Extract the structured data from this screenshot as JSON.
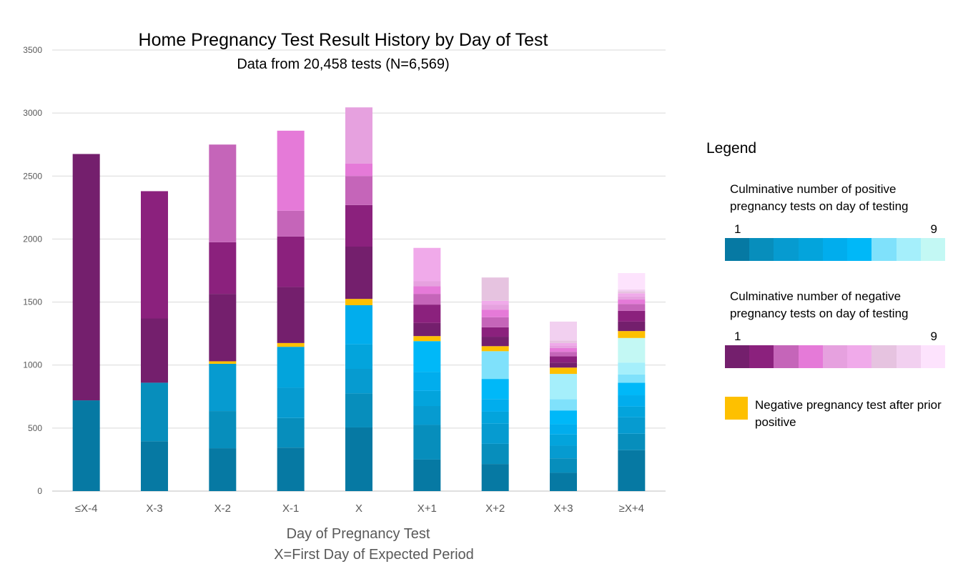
{
  "chart_data": {
    "type": "bar",
    "stacked": true,
    "title": "Home Pregnancy Test Result History by Day of Test",
    "subtitle": "Data from 20,458 tests (N=6,569)",
    "xlabel": "Day of Pregnancy Test",
    "xlabel_note": "X=First Day of Expected Period",
    "ylim": [
      0,
      3500
    ],
    "yticks": [
      0,
      500,
      1000,
      1500,
      2000,
      2500,
      3000,
      3500
    ],
    "grid": true,
    "legend_placement": "right",
    "categories": [
      "≤X-4",
      "X-3",
      "X-2",
      "X-1",
      "X",
      "X+1",
      "X+2",
      "X+3",
      "≥X+4"
    ],
    "segments": [
      [
        {
          "kind": "pos",
          "level": 1,
          "value": 720
        },
        {
          "kind": "neg",
          "level": 1,
          "value": 1955
        }
      ],
      [
        {
          "kind": "pos",
          "level": 1,
          "value": 395
        },
        {
          "kind": "pos",
          "level": 2,
          "value": 465
        },
        {
          "kind": "neg",
          "level": 1,
          "value": 510
        },
        {
          "kind": "neg",
          "level": 2,
          "value": 1010
        }
      ],
      [
        {
          "kind": "pos",
          "level": 1,
          "value": 340
        },
        {
          "kind": "pos",
          "level": 2,
          "value": 295
        },
        {
          "kind": "pos",
          "level": 3,
          "value": 375
        },
        {
          "kind": "neg_after_pos",
          "value": 20
        },
        {
          "kind": "neg",
          "level": 1,
          "value": 535
        },
        {
          "kind": "neg",
          "level": 2,
          "value": 410
        },
        {
          "kind": "neg",
          "level": 3,
          "value": 775
        }
      ],
      [
        {
          "kind": "pos",
          "level": 1,
          "value": 345
        },
        {
          "kind": "pos",
          "level": 2,
          "value": 235
        },
        {
          "kind": "pos",
          "level": 3,
          "value": 240
        },
        {
          "kind": "pos",
          "level": 4,
          "value": 325
        },
        {
          "kind": "neg_after_pos",
          "value": 30
        },
        {
          "kind": "neg",
          "level": 1,
          "value": 445
        },
        {
          "kind": "neg",
          "level": 2,
          "value": 400
        },
        {
          "kind": "neg",
          "level": 3,
          "value": 205
        },
        {
          "kind": "neg",
          "level": 4,
          "value": 635
        }
      ],
      [
        {
          "kind": "pos",
          "level": 1,
          "value": 505
        },
        {
          "kind": "pos",
          "level": 2,
          "value": 270
        },
        {
          "kind": "pos",
          "level": 3,
          "value": 195
        },
        {
          "kind": "pos",
          "level": 4,
          "value": 195
        },
        {
          "kind": "pos",
          "level": 5,
          "value": 310
        },
        {
          "kind": "neg_after_pos",
          "value": 50
        },
        {
          "kind": "neg",
          "level": 1,
          "value": 415
        },
        {
          "kind": "neg",
          "level": 2,
          "value": 330
        },
        {
          "kind": "neg",
          "level": 3,
          "value": 230
        },
        {
          "kind": "neg",
          "level": 4,
          "value": 100
        },
        {
          "kind": "neg",
          "level": 5,
          "value": 445
        }
      ],
      [
        {
          "kind": "pos",
          "level": 1,
          "value": 250
        },
        {
          "kind": "pos",
          "level": 2,
          "value": 275
        },
        {
          "kind": "pos",
          "level": 3,
          "value": 150
        },
        {
          "kind": "pos",
          "level": 4,
          "value": 120
        },
        {
          "kind": "pos",
          "level": 5,
          "value": 150
        },
        {
          "kind": "pos",
          "level": 6,
          "value": 245
        },
        {
          "kind": "neg_after_pos",
          "value": 40
        },
        {
          "kind": "neg",
          "level": 1,
          "value": 105
        },
        {
          "kind": "neg",
          "level": 2,
          "value": 145
        },
        {
          "kind": "neg",
          "level": 3,
          "value": 85
        },
        {
          "kind": "neg",
          "level": 4,
          "value": 60
        },
        {
          "kind": "neg",
          "level": 5,
          "value": 40
        },
        {
          "kind": "neg",
          "level": 6,
          "value": 265
        }
      ],
      [
        {
          "kind": "pos",
          "level": 1,
          "value": 215
        },
        {
          "kind": "pos",
          "level": 2,
          "value": 160
        },
        {
          "kind": "pos",
          "level": 3,
          "value": 160
        },
        {
          "kind": "pos",
          "level": 4,
          "value": 95
        },
        {
          "kind": "pos",
          "level": 5,
          "value": 100
        },
        {
          "kind": "pos",
          "level": 6,
          "value": 160
        },
        {
          "kind": "pos",
          "level": 7,
          "value": 220
        },
        {
          "kind": "neg_after_pos",
          "value": 40
        },
        {
          "kind": "neg",
          "level": 1,
          "value": 75
        },
        {
          "kind": "neg",
          "level": 2,
          "value": 75
        },
        {
          "kind": "neg",
          "level": 3,
          "value": 80
        },
        {
          "kind": "neg",
          "level": 4,
          "value": 60
        },
        {
          "kind": "neg",
          "level": 5,
          "value": 40
        },
        {
          "kind": "neg",
          "level": 6,
          "value": 30
        },
        {
          "kind": "neg",
          "level": 7,
          "value": 185
        }
      ],
      [
        {
          "kind": "pos",
          "level": 1,
          "value": 145
        },
        {
          "kind": "pos",
          "level": 2,
          "value": 115
        },
        {
          "kind": "pos",
          "level": 3,
          "value": 100
        },
        {
          "kind": "pos",
          "level": 4,
          "value": 90
        },
        {
          "kind": "pos",
          "level": 5,
          "value": 80
        },
        {
          "kind": "pos",
          "level": 6,
          "value": 110
        },
        {
          "kind": "pos",
          "level": 7,
          "value": 90
        },
        {
          "kind": "pos",
          "level": 8,
          "value": 200
        },
        {
          "kind": "neg_after_pos",
          "value": 50
        },
        {
          "kind": "neg",
          "level": 1,
          "value": 40
        },
        {
          "kind": "neg",
          "level": 2,
          "value": 50
        },
        {
          "kind": "neg",
          "level": 3,
          "value": 35
        },
        {
          "kind": "neg",
          "level": 4,
          "value": 30
        },
        {
          "kind": "neg",
          "level": 5,
          "value": 20
        },
        {
          "kind": "neg",
          "level": 6,
          "value": 20
        },
        {
          "kind": "neg",
          "level": 7,
          "value": 20
        },
        {
          "kind": "neg",
          "level": 8,
          "value": 150
        }
      ],
      [
        {
          "kind": "pos",
          "level": 1,
          "value": 325
        },
        {
          "kind": "pos",
          "level": 2,
          "value": 130
        },
        {
          "kind": "pos",
          "level": 3,
          "value": 130
        },
        {
          "kind": "pos",
          "level": 4,
          "value": 85
        },
        {
          "kind": "pos",
          "level": 5,
          "value": 90
        },
        {
          "kind": "pos",
          "level": 6,
          "value": 100
        },
        {
          "kind": "pos",
          "level": 7,
          "value": 65
        },
        {
          "kind": "pos",
          "level": 8,
          "value": 95
        },
        {
          "kind": "pos",
          "level": 9,
          "value": 195
        },
        {
          "kind": "neg_after_pos",
          "value": 55
        },
        {
          "kind": "neg",
          "level": 1,
          "value": 75
        },
        {
          "kind": "neg",
          "level": 2,
          "value": 85
        },
        {
          "kind": "neg",
          "level": 3,
          "value": 55
        },
        {
          "kind": "neg",
          "level": 4,
          "value": 35
        },
        {
          "kind": "neg",
          "level": 5,
          "value": 25
        },
        {
          "kind": "neg",
          "level": 6,
          "value": 25
        },
        {
          "kind": "neg",
          "level": 7,
          "value": 15
        },
        {
          "kind": "neg",
          "level": 8,
          "value": 15
        },
        {
          "kind": "neg",
          "level": 9,
          "value": 130
        }
      ]
    ],
    "colors": {
      "pos": [
        "#0679a3",
        "#078ebc",
        "#069bd0",
        "#03a4dc",
        "#01aded",
        "#00b8f8",
        "#7fe1fb",
        "#a5effb",
        "#c3f8f4"
      ],
      "neg": [
        "#741f6d",
        "#8b217d",
        "#c565b9",
        "#e57ad8",
        "#e6a1df",
        "#f0aaea",
        "#e6c3e0",
        "#f2d0f0",
        "#fde3fd"
      ],
      "neg_after_pos": "#fec000",
      "grid": "#d9d9d9",
      "text": "#595959"
    }
  },
  "legend": {
    "title": "Legend",
    "positive_caption": "Culminative number of positive pregnancy  tests on day of testing",
    "negative_caption": "Culminative number of negative pregnancy tests on day of testing",
    "scale_low": "1",
    "scale_high": "9",
    "after_positive_label": "Negative pregnancy test after prior positive"
  }
}
